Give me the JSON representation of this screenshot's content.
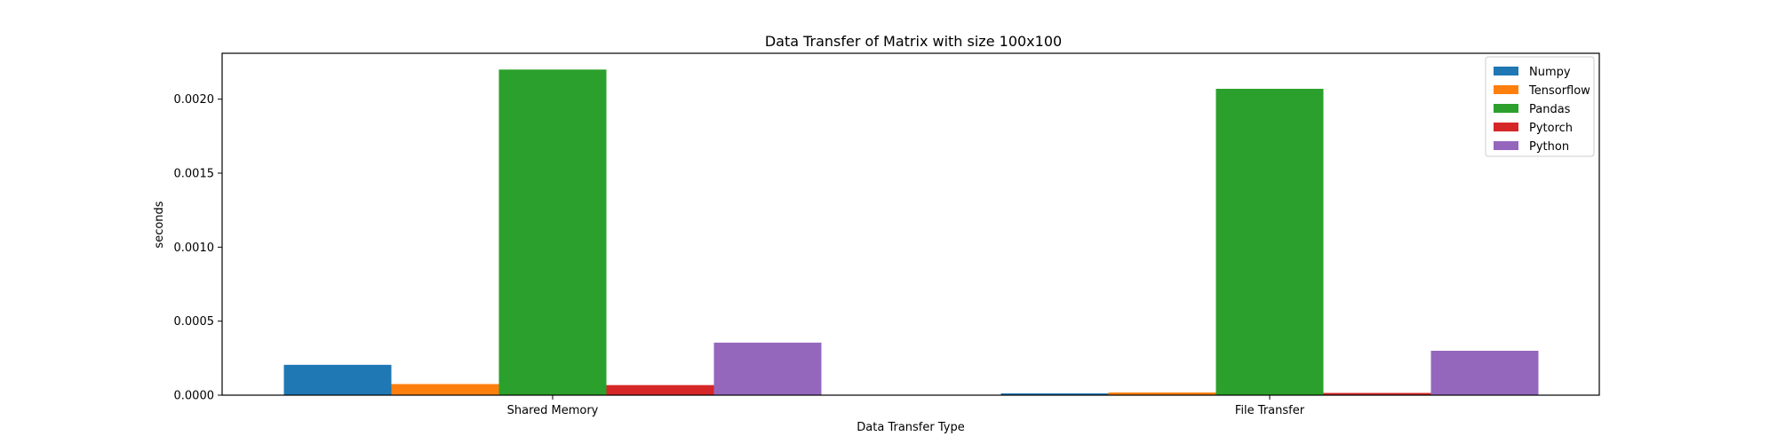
{
  "chart_data": {
    "type": "bar",
    "title": "Data Transfer of Matrix with size 100x100",
    "xlabel": "Data Transfer Type",
    "ylabel": "seconds",
    "categories": [
      "Shared Memory",
      "File Transfer"
    ],
    "series": [
      {
        "name": "Numpy",
        "color": "#1f77b4",
        "values": [
          0.000205,
          1.2e-05
        ]
      },
      {
        "name": "Tensorflow",
        "color": "#ff7f0e",
        "values": [
          7.5e-05,
          1.8e-05
        ]
      },
      {
        "name": "Pandas",
        "color": "#2ca02c",
        "values": [
          0.0022,
          0.00207
        ]
      },
      {
        "name": "Pytorch",
        "color": "#d62728",
        "values": [
          6.8e-05,
          1.5e-05
        ]
      },
      {
        "name": "Python",
        "color": "#9467bd",
        "values": [
          0.000355,
          0.0003
        ]
      }
    ],
    "ylim": [
      0,
      0.00231
    ],
    "yticks": [
      0,
      0.0005,
      0.001,
      0.0015,
      0.002
    ],
    "ytick_labels": [
      "0.0000",
      "0.0005",
      "0.0010",
      "0.0015",
      "0.0020"
    ],
    "legend": "top-right",
    "grid": false
  }
}
